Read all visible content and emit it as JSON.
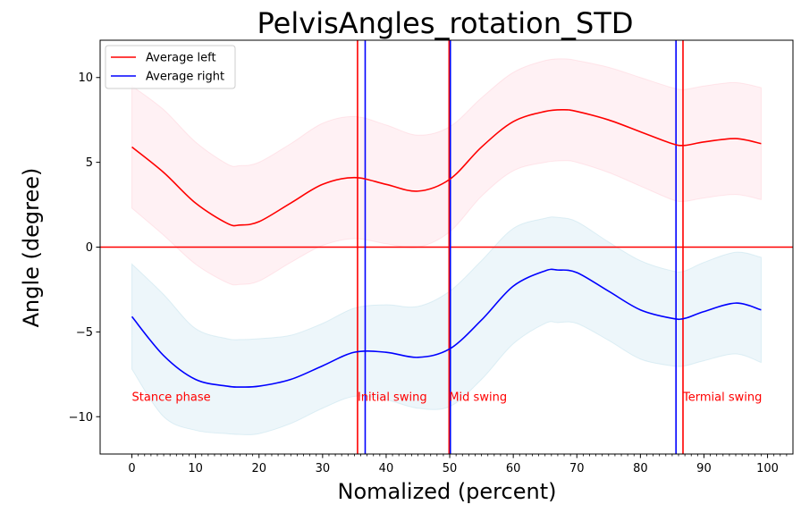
{
  "chart_data": {
    "type": "line",
    "title": "PelvisAngles_rotation_STD",
    "xlabel": "Nomalized (percent)",
    "ylabel": "Angle (degree)",
    "xlim": [
      -5,
      104
    ],
    "ylim": [
      -12.2,
      12.2
    ],
    "x_ticks": [
      0,
      10,
      20,
      30,
      40,
      50,
      60,
      70,
      80,
      90,
      100
    ],
    "y_ticks": [
      -10,
      -5,
      0,
      5,
      10
    ],
    "x_tick_labels": [
      "0",
      "10",
      "20",
      "30",
      "40",
      "50",
      "60",
      "70",
      "80",
      "90",
      "100"
    ],
    "y_tick_labels": [
      "−10",
      "−5",
      "0",
      "5",
      "10"
    ],
    "minor_x_tick_step": 1,
    "grid": false,
    "legend_position": "top-left",
    "colors": {
      "left": "#ff0000",
      "right": "#0000ff",
      "left_band": "#ffc0cb",
      "right_band": "#add8e6"
    },
    "series": [
      {
        "name": "Average left",
        "color": "#ff0000",
        "x": [
          0,
          5,
          10,
          15,
          17,
          20,
          25,
          30,
          35,
          40,
          45,
          50,
          55,
          60,
          65,
          68,
          70,
          75,
          80,
          85,
          87,
          90,
          95,
          99
        ],
        "values": [
          5.9,
          4.4,
          2.6,
          1.4,
          1.3,
          1.5,
          2.6,
          3.7,
          4.1,
          3.7,
          3.3,
          4.0,
          5.9,
          7.4,
          8.0,
          8.1,
          8.0,
          7.5,
          6.8,
          6.1,
          6.0,
          6.2,
          6.4,
          6.1
        ],
        "std": [
          3.6,
          3.7,
          3.6,
          3.5,
          3.5,
          3.5,
          3.5,
          3.6,
          3.6,
          3.5,
          3.3,
          3.1,
          2.9,
          2.9,
          3.0,
          3.0,
          3.0,
          3.1,
          3.2,
          3.3,
          3.3,
          3.3,
          3.3,
          3.3
        ]
      },
      {
        "name": "Average right",
        "color": "#0000ff",
        "x": [
          0,
          5,
          10,
          15,
          17,
          20,
          25,
          30,
          35,
          40,
          45,
          50,
          55,
          60,
          65,
          67,
          70,
          75,
          80,
          85,
          87,
          90,
          95,
          99
        ],
        "values": [
          -4.1,
          -6.4,
          -7.8,
          -8.2,
          -8.25,
          -8.2,
          -7.8,
          -7.0,
          -6.2,
          -6.2,
          -6.5,
          -6.0,
          -4.3,
          -2.3,
          -1.4,
          -1.35,
          -1.5,
          -2.6,
          -3.7,
          -4.2,
          -4.2,
          -3.8,
          -3.3,
          -3.7
        ],
        "std": [
          3.1,
          3.6,
          3.0,
          2.8,
          2.8,
          2.8,
          2.6,
          2.5,
          2.6,
          2.8,
          3.0,
          3.4,
          3.5,
          3.4,
          3.1,
          3.1,
          3.0,
          2.9,
          2.9,
          2.8,
          2.8,
          2.9,
          3.0,
          3.1
        ]
      }
    ],
    "hlines": [
      {
        "y": 0,
        "color": "#ff0000"
      }
    ],
    "vlines": [
      {
        "x": 35.5,
        "color": "#ff0000"
      },
      {
        "x": 36.7,
        "color": "#0000ff"
      },
      {
        "x": 49.9,
        "color": "#ff0000"
      },
      {
        "x": 50.1,
        "color": "#0000ff"
      },
      {
        "x": 85.6,
        "color": "#0000ff"
      },
      {
        "x": 86.7,
        "color": "#ff0000"
      }
    ],
    "annotations": [
      {
        "text": "Stance phase",
        "x": 0,
        "y": -8.8,
        "color": "#ff0000"
      },
      {
        "text": "Initial swing",
        "x": 35.5,
        "y": -8.8,
        "color": "#ff0000"
      },
      {
        "text": "Mid swing",
        "x": 49.9,
        "y": -8.8,
        "color": "#ff0000"
      },
      {
        "text": "Termial swing",
        "x": 86.7,
        "y": -8.8,
        "color": "#ff0000"
      }
    ]
  }
}
